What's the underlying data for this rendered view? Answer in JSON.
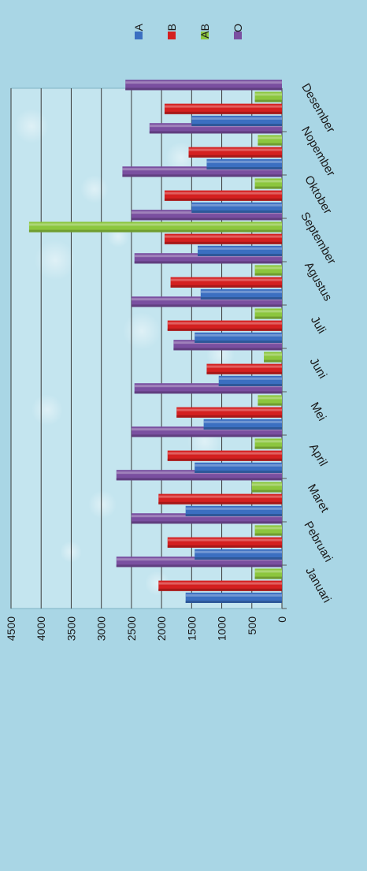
{
  "chart_data": {
    "type": "bar",
    "orientation": "rotated-90",
    "categories": [
      "Januari",
      "Pebruari",
      "Maret",
      "April",
      "Mei",
      "Juni",
      "Juli",
      "Agustus",
      "September",
      "Oktober",
      "Nopember",
      "Desember"
    ],
    "series": [
      {
        "name": "A",
        "color": "#3b6fc1",
        "values": [
          1600,
          1450,
          1600,
          1450,
          1300,
          1050,
          1450,
          1350,
          1400,
          1500,
          1250,
          1500
        ]
      },
      {
        "name": "B",
        "color": "#d42020",
        "values": [
          2050,
          1900,
          2050,
          1900,
          1750,
          1250,
          1900,
          1850,
          1950,
          1950,
          1550,
          1950
        ]
      },
      {
        "name": "AB",
        "color": "#8cc63e",
        "values": [
          450,
          450,
          500,
          450,
          400,
          300,
          450,
          450,
          4200,
          450,
          400,
          450
        ]
      },
      {
        "name": "O",
        "color": "#7a4fa0",
        "values": [
          2750,
          2500,
          2750,
          2500,
          2450,
          1800,
          2500,
          2450,
          2500,
          2650,
          2200,
          2600
        ]
      }
    ],
    "yticks": [
      "0",
      "500",
      "1000",
      "1500",
      "2000",
      "2500",
      "3000",
      "3500",
      "4000",
      "4500"
    ],
    "ylim": [
      0,
      4500
    ],
    "grid": true,
    "legend_position": "top"
  }
}
